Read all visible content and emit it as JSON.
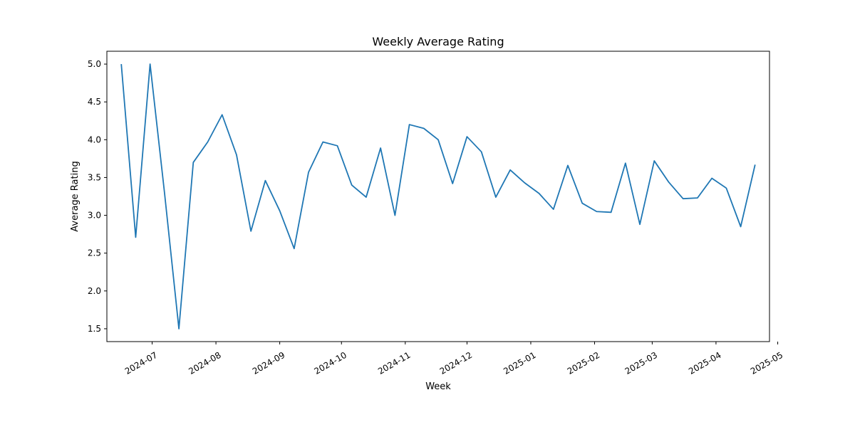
{
  "chart_data": {
    "type": "line",
    "title": "Weekly Average Rating",
    "xlabel": "Week",
    "ylabel": "Average Rating",
    "x_axis_type": "date",
    "xlim": [
      "2024-06-09",
      "2025-04-27"
    ],
    "ylim": [
      1.33,
      5.17
    ],
    "grid": false,
    "line_color": "#1f77b4",
    "x_ticks": [
      "2024-07",
      "2024-08",
      "2024-09",
      "2024-10",
      "2024-11",
      "2024-12",
      "2025-01",
      "2025-02",
      "2025-03",
      "2025-04",
      "2025-05"
    ],
    "y_ticks": [
      "1.5",
      "2.0",
      "2.5",
      "3.0",
      "3.5",
      "4.0",
      "4.5",
      "5.0"
    ],
    "series": [
      {
        "x": [
          "2024-06-16",
          "2024-06-23",
          "2024-06-30",
          "2024-07-07",
          "2024-07-14",
          "2024-07-21",
          "2024-07-28",
          "2024-08-04",
          "2024-08-11",
          "2024-08-18",
          "2024-08-25",
          "2024-09-01",
          "2024-09-08",
          "2024-09-15",
          "2024-09-22",
          "2024-09-29",
          "2024-10-06",
          "2024-10-13",
          "2024-10-20",
          "2024-10-27",
          "2024-11-03",
          "2024-11-10",
          "2024-11-17",
          "2024-11-24",
          "2024-12-01",
          "2024-12-08",
          "2024-12-15",
          "2024-12-22",
          "2024-12-29",
          "2025-01-05",
          "2025-01-12",
          "2025-01-19",
          "2025-01-26",
          "2025-02-02",
          "2025-02-09",
          "2025-02-16",
          "2025-02-23",
          "2025-03-02",
          "2025-03-09",
          "2025-03-16",
          "2025-03-23",
          "2025-03-30",
          "2025-04-06",
          "2025-04-13",
          "2025-04-20"
        ],
        "values": [
          5.0,
          2.71,
          5.0,
          3.3,
          1.5,
          3.7,
          3.97,
          4.33,
          3.8,
          2.79,
          3.46,
          3.06,
          2.56,
          3.57,
          3.97,
          3.92,
          3.4,
          3.24,
          3.89,
          3.0,
          4.2,
          4.15,
          4.0,
          3.42,
          4.04,
          3.84,
          3.24,
          3.6,
          3.43,
          3.29,
          3.08,
          3.66,
          3.16,
          3.05,
          3.04,
          3.69,
          2.88,
          3.72,
          3.44,
          3.22,
          3.23,
          3.49,
          3.36,
          2.85,
          3.67
        ]
      }
    ]
  }
}
